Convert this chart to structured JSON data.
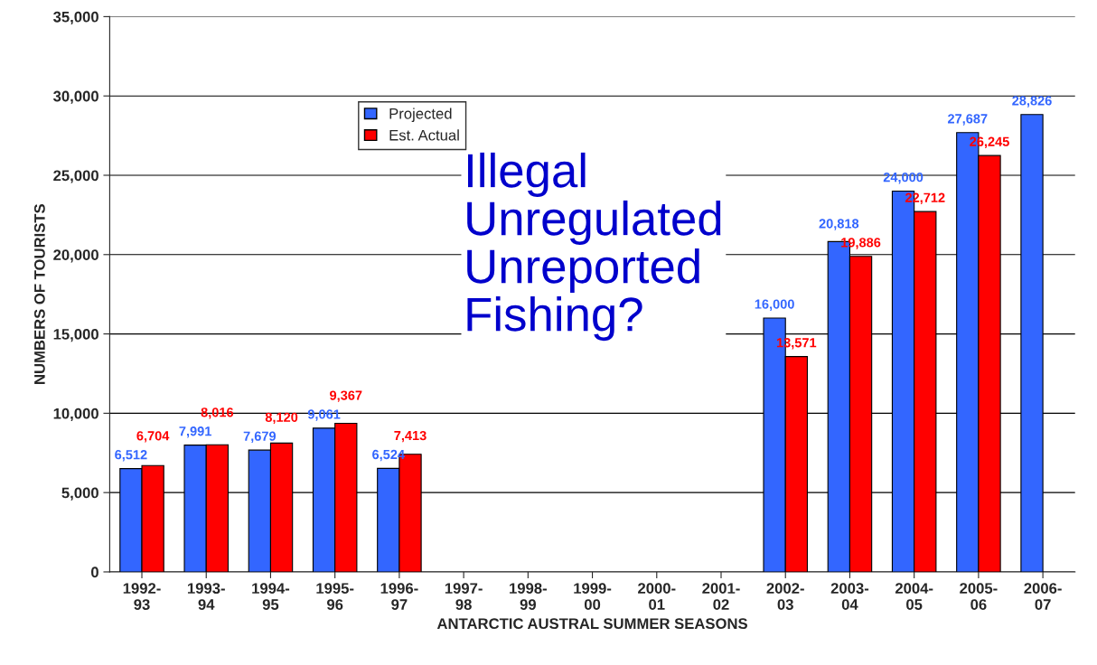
{
  "chart_data": {
    "type": "bar",
    "xlabel": "ANTARCTIC AUSTRAL SUMMER SEASONS",
    "ylabel": "NUMBERS OF TOURISTS",
    "categories": [
      "1992-\n93",
      "1993-\n94",
      "1994-\n95",
      "1995-\n96",
      "1996-\n97",
      "1997-\n98",
      "1998-\n99",
      "1999-\n00",
      "2000-\n01",
      "2001-\n02",
      "2002-\n03",
      "2003-\n04",
      "2004-\n05",
      "2005-\n06",
      "2006-\n07"
    ],
    "series": [
      {
        "name": "Projected",
        "color": "#3366ff",
        "values": [
          6512,
          7991,
          7679,
          9061,
          6524,
          null,
          null,
          null,
          null,
          null,
          16000,
          20818,
          24000,
          27687,
          28826
        ],
        "value_labels": [
          "6,512",
          "7,991",
          "7,679",
          "9,061",
          "6,524",
          null,
          null,
          null,
          null,
          null,
          "16,000",
          "20,818",
          "24,000",
          "27,687",
          "28,826"
        ]
      },
      {
        "name": "Est. Actual",
        "color": "#ff0000",
        "values": [
          6704,
          8016,
          8120,
          9367,
          7413,
          null,
          null,
          null,
          null,
          null,
          13571,
          19886,
          22712,
          26245,
          null
        ],
        "value_labels": [
          "6,704",
          "8,016",
          "8,120",
          "9,367",
          "7,413",
          null,
          null,
          null,
          null,
          null,
          "13,571",
          "19,886",
          "22,712",
          "26,245",
          null
        ]
      }
    ],
    "ylim": [
      0,
      35000
    ],
    "yticks": [
      0,
      {
        "value": 5000,
        "label": "5,000"
      },
      {
        "value": 10000,
        "label": "10,000"
      },
      {
        "value": 15000,
        "label": "15,000"
      },
      {
        "value": 20000,
        "label": "20,000"
      },
      {
        "value": 25000,
        "label": "25,000"
      },
      {
        "value": 30000,
        "label": "30,000"
      },
      {
        "value": 35000,
        "label": "35,000"
      }
    ],
    "grid": "y",
    "legend": "top left",
    "annotations": [
      "Illegal\nUnregulated\nUnreported\nFishing?"
    ]
  }
}
